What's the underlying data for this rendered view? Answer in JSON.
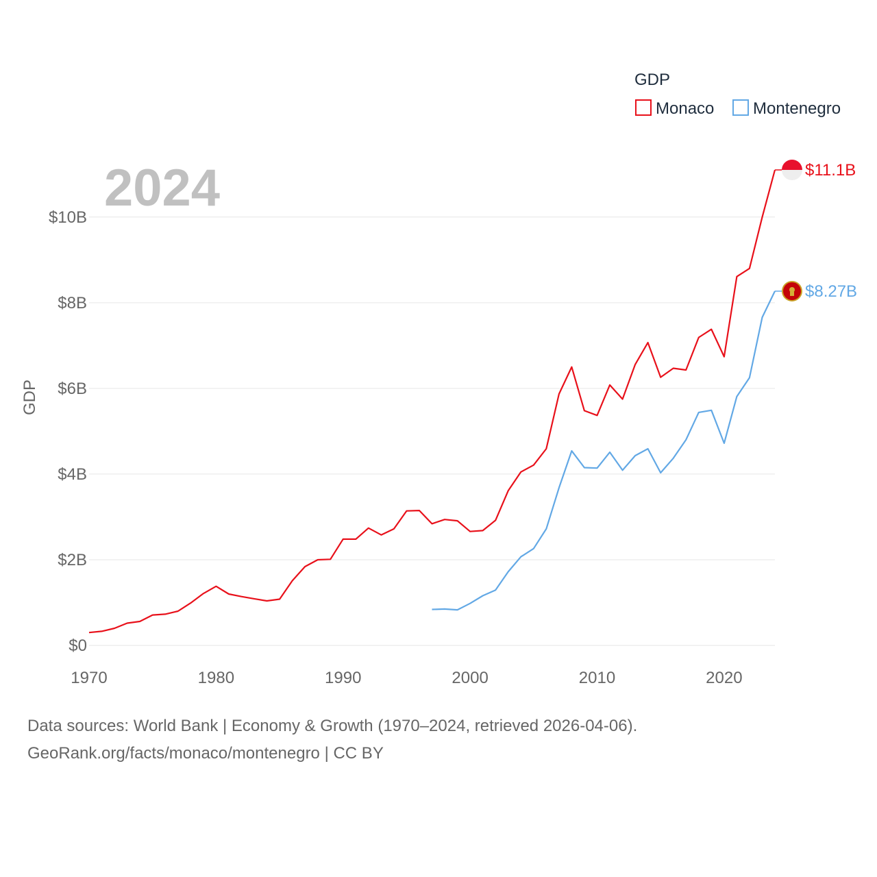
{
  "chart_data": {
    "type": "line",
    "ylabel": "GDP",
    "xlabel": "",
    "xlim": [
      1970,
      2024
    ],
    "ylim": [
      0,
      11.1
    ],
    "year_label": "2024",
    "legend": {
      "title": "GDP",
      "position": "top-right"
    },
    "x_ticks": [
      {
        "value": 1970,
        "label": "1970"
      },
      {
        "value": 1980,
        "label": "1980"
      },
      {
        "value": 1990,
        "label": "1990"
      },
      {
        "value": 2000,
        "label": "2000"
      },
      {
        "value": 2010,
        "label": "2010"
      },
      {
        "value": 2020,
        "label": "2020"
      }
    ],
    "y_ticks": [
      {
        "value": 0,
        "label": "$0"
      },
      {
        "value": 2,
        "label": "$2B"
      },
      {
        "value": 4,
        "label": "$4B"
      },
      {
        "value": 6,
        "label": "$6B"
      },
      {
        "value": 8,
        "label": "$8B"
      },
      {
        "value": 10,
        "label": "$10B"
      }
    ],
    "series": [
      {
        "name": "Monaco",
        "color": "#e8101a",
        "end_label": "$11.1B",
        "flag_icon": "monaco-flag-icon",
        "x": [
          1970,
          1971,
          1972,
          1973,
          1974,
          1975,
          1976,
          1977,
          1978,
          1979,
          1980,
          1981,
          1982,
          1983,
          1984,
          1985,
          1986,
          1987,
          1988,
          1989,
          1990,
          1991,
          1992,
          1993,
          1994,
          1995,
          1996,
          1997,
          1998,
          1999,
          2000,
          2001,
          2002,
          2003,
          2004,
          2005,
          2006,
          2007,
          2008,
          2009,
          2010,
          2011,
          2012,
          2013,
          2014,
          2015,
          2016,
          2017,
          2018,
          2019,
          2020,
          2021,
          2022,
          2023,
          2024
        ],
        "values": [
          0.3,
          0.33,
          0.4,
          0.52,
          0.56,
          0.71,
          0.73,
          0.8,
          0.99,
          1.21,
          1.38,
          1.2,
          1.14,
          1.09,
          1.04,
          1.08,
          1.51,
          1.84,
          2.0,
          2.01,
          2.48,
          2.48,
          2.74,
          2.58,
          2.72,
          3.14,
          3.15,
          2.84,
          2.94,
          2.91,
          2.66,
          2.68,
          2.92,
          3.61,
          4.05,
          4.21,
          4.59,
          5.87,
          6.5,
          5.48,
          5.37,
          6.08,
          5.75,
          6.56,
          7.07,
          6.26,
          6.47,
          6.43,
          7.19,
          7.38,
          6.74,
          8.61,
          8.8,
          10.0,
          11.1
        ]
      },
      {
        "name": "Montenegro",
        "color": "#62a8e5",
        "end_label": "$8.27B",
        "flag_icon": "montenegro-flag-icon",
        "x": [
          1997,
          1998,
          1999,
          2000,
          2001,
          2002,
          2003,
          2004,
          2005,
          2006,
          2007,
          2008,
          2009,
          2010,
          2011,
          2012,
          2013,
          2014,
          2015,
          2016,
          2017,
          2018,
          2019,
          2020,
          2021,
          2022,
          2023,
          2024
        ],
        "values": [
          0.84,
          0.85,
          0.83,
          0.98,
          1.16,
          1.29,
          1.72,
          2.07,
          2.26,
          2.72,
          3.68,
          4.54,
          4.15,
          4.14,
          4.51,
          4.09,
          4.43,
          4.59,
          4.03,
          4.37,
          4.8,
          5.44,
          5.49,
          4.72,
          5.81,
          6.25,
          7.66,
          8.27
        ]
      }
    ]
  },
  "footer": {
    "line1": "Data sources: World Bank | Economy & Growth (1970–2024, retrieved 2026-04-06).",
    "line2": "GeoRank.org/facts/monaco/montenegro | CC BY"
  }
}
